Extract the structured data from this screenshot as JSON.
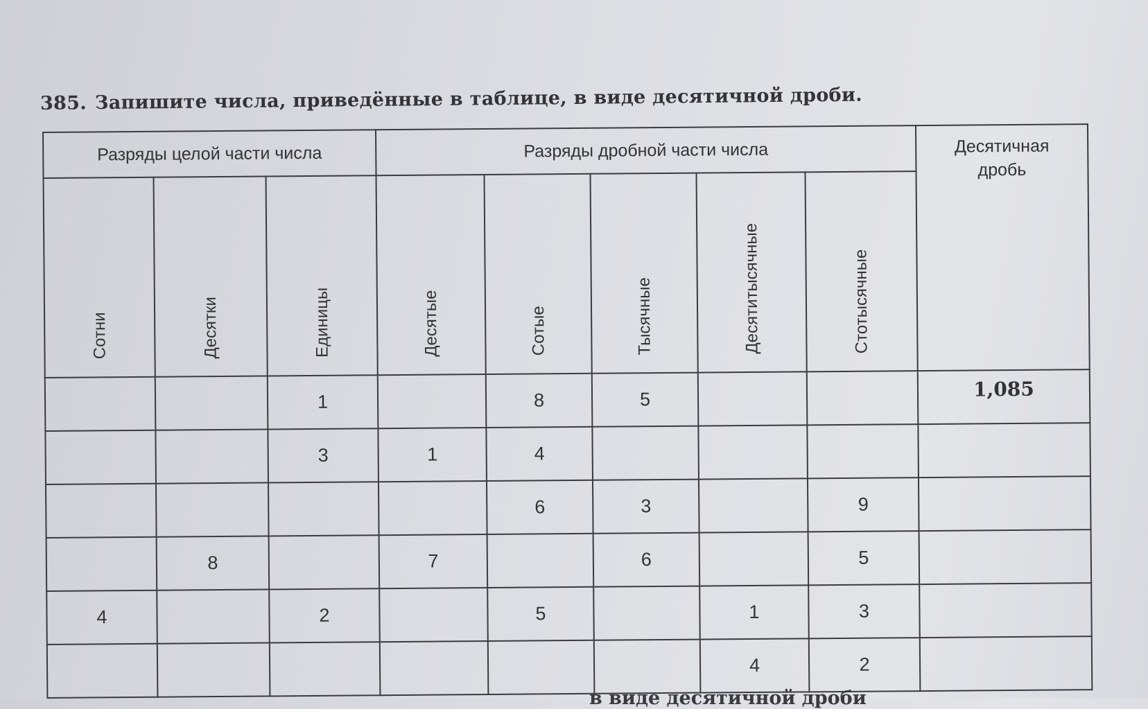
{
  "exercise": {
    "number": "385.",
    "instruction": "Запишите числа, приведённые в таблице, в виде десятичной дроби."
  },
  "table": {
    "group_headers": {
      "integer": "Разряды целой части числа",
      "fraction": "Разряды дробной части числа",
      "decimal": "Десятичная дробь"
    },
    "columns": [
      "Сотни",
      "Десятки",
      "Единицы",
      "Десятые",
      "Сотые",
      "Тысячные",
      "Десятитысячные",
      "Стотысячные"
    ],
    "rows": [
      {
        "cells": [
          "",
          "",
          "1",
          "",
          "8",
          "5",
          "",
          ""
        ],
        "answer": "1,085"
      },
      {
        "cells": [
          "",
          "",
          "3",
          "1",
          "4",
          "",
          "",
          ""
        ],
        "answer": ""
      },
      {
        "cells": [
          "",
          "",
          "",
          "",
          "6",
          "3",
          "",
          "9"
        ],
        "answer": ""
      },
      {
        "cells": [
          "",
          "8",
          "",
          "7",
          "",
          "6",
          "",
          "5"
        ],
        "answer": ""
      },
      {
        "cells": [
          "4",
          "",
          "2",
          "",
          "5",
          "",
          "1",
          "3"
        ],
        "answer": ""
      },
      {
        "cells": [
          "",
          "",
          "",
          "",
          "",
          "",
          "4",
          "2"
        ],
        "answer": ""
      }
    ]
  },
  "next_exercise_fragment": "в виде десятичной дроби"
}
